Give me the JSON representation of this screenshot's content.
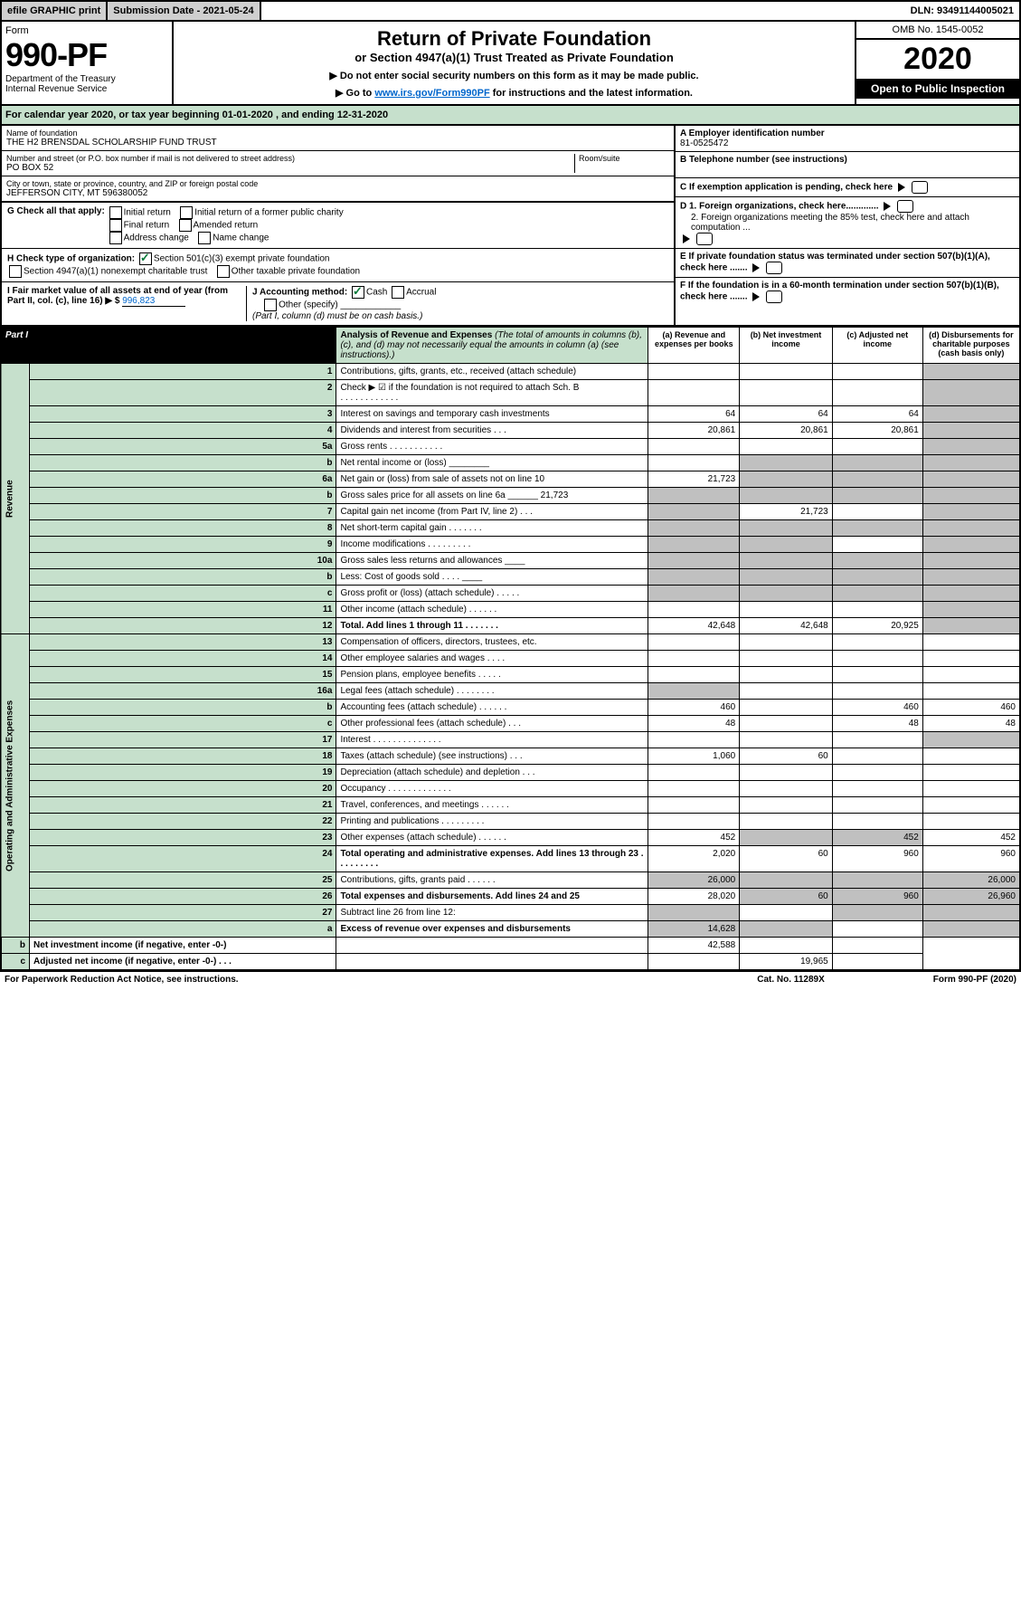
{
  "topbar": {
    "efile": "efile GRAPHIC print",
    "subdate_lbl": "Submission Date - 2021-05-24",
    "dln": "DLN: 93491144005021"
  },
  "header": {
    "form_lbl": "Form",
    "form_no": "990-PF",
    "dept": "Department of the Treasury\nInternal Revenue Service",
    "title": "Return of Private Foundation",
    "subtitle": "or Section 4947(a)(1) Trust Treated as Private Foundation",
    "note1": "▶ Do not enter social security numbers on this form as it may be made public.",
    "note2_pre": "▶ Go to ",
    "note2_link": "www.irs.gov/Form990PF",
    "note2_post": " for instructions and the latest information.",
    "omb": "OMB No. 1545-0052",
    "year": "2020",
    "inspection": "Open to Public Inspection"
  },
  "cal": "For calendar year 2020, or tax year beginning 01-01-2020            , and ending 12-31-2020",
  "info": {
    "name_lbl": "Name of foundation",
    "name": "THE H2 BRENSDAL SCHOLARSHIP FUND TRUST",
    "addr_lbl": "Number and street (or P.O. box number if mail is not delivered to street address)",
    "addr": "PO BOX 52",
    "room_lbl": "Room/suite",
    "city_lbl": "City or town, state or province, country, and ZIP or foreign postal code",
    "city": "JEFFERSON CITY, MT  596380052",
    "ein_lbl": "A Employer identification number",
    "ein": "81-0525472",
    "tel_lbl": "B Telephone number (see instructions)",
    "c": "C  If exemption application is pending, check here",
    "d1": "D 1. Foreign organizations, check here.............",
    "d2": "2. Foreign organizations meeting the 85% test, check here and attach computation ...",
    "e": "E  If private foundation status was terminated under section 507(b)(1)(A), check here .......",
    "f": "F  If the foundation is in a 60-month termination under section 507(b)(1)(B), check here .......",
    "g_lbl": "G Check all that apply:",
    "g": [
      "Initial return",
      "Final return",
      "Address change",
      "Initial return of a former public charity",
      "Amended return",
      "Name change"
    ],
    "h_lbl": "H Check type of organization:",
    "h": [
      "Section 501(c)(3) exempt private foundation",
      "Section 4947(a)(1) nonexempt charitable trust",
      "Other taxable private foundation"
    ],
    "i_lbl": "I Fair market value of all assets at end of year (from Part II, col. (c), line 16) ▶ $",
    "i_val": "996,823",
    "j_lbl": "J Accounting method:",
    "j": [
      "Cash",
      "Accrual",
      "Other (specify)"
    ],
    "j_note": "(Part I, column (d) must be on cash basis.)"
  },
  "part1": {
    "tab": "Part I",
    "title": "Analysis of Revenue and Expenses",
    "note": "(The total of amounts in columns (b), (c), and (d) may not necessarily equal the amounts in column (a) (see instructions).)",
    "cols": {
      "a": "(a)   Revenue and expenses per books",
      "b": "(b)  Net investment income",
      "c": "(c)  Adjusted net income",
      "d": "(d)  Disbursements for charitable purposes (cash basis only)"
    }
  },
  "sides": {
    "rev": "Revenue",
    "exp": "Operating and Administrative Expenses"
  },
  "rows": [
    {
      "n": "1",
      "d": "Contributions, gifts, grants, etc., received (attach schedule)"
    },
    {
      "n": "2",
      "d": "Check ▶ ☑ if the foundation is not required to attach Sch. B",
      "d2": ".   .   .   .   .   .   .   .   .   .   .   ."
    },
    {
      "n": "3",
      "d": "Interest on savings and temporary cash investments",
      "a": "64",
      "b": "64",
      "c": "64"
    },
    {
      "n": "4",
      "d": "Dividends and interest from securities    .   .   .",
      "a": "20,861",
      "b": "20,861",
      "c": "20,861"
    },
    {
      "n": "5a",
      "d": "Gross rents     .   .   .   .   .   .   .   .   .   .   ."
    },
    {
      "n": "b",
      "d": "Net rental income or (loss) ________"
    },
    {
      "n": "6a",
      "d": "Net gain or (loss) from sale of assets not on line 10",
      "a": "21,723"
    },
    {
      "n": "b",
      "d": "Gross sales price for all assets on line 6a ______ 21,723"
    },
    {
      "n": "7",
      "d": "Capital gain net income (from Part IV, line 2)   .   .   .",
      "b": "21,723"
    },
    {
      "n": "8",
      "d": "Net short-term capital gain   .   .   .   .   .   .   ."
    },
    {
      "n": "9",
      "d": "Income modifications  .   .   .   .   .   .   .   .   ."
    },
    {
      "n": "10a",
      "d": "Gross sales less returns and allowances ____"
    },
    {
      "n": "b",
      "d": "Less: Cost of goods sold      .   .   .   .   ____"
    },
    {
      "n": "c",
      "d": "Gross profit or (loss) (attach schedule)   .   .   .   .   ."
    },
    {
      "n": "11",
      "d": "Other income (attach schedule)    .   .   .   .   .   ."
    },
    {
      "n": "12",
      "d": "Total. Add lines 1 through 11   .   .   .   .   .   .   .",
      "a": "42,648",
      "b": "42,648",
      "c": "20,925",
      "bold": true
    },
    {
      "n": "13",
      "d": "Compensation of officers, directors, trustees, etc."
    },
    {
      "n": "14",
      "d": "Other employee salaries and wages   .   .   .   ."
    },
    {
      "n": "15",
      "d": "Pension plans, employee benefits   .   .   .   .   ."
    },
    {
      "n": "16a",
      "d": "Legal fees (attach schedule)  .   .   .   .   .   .   .   ."
    },
    {
      "n": "b",
      "d": "Accounting fees (attach schedule)  .   .   .   .   .   .",
      "a": "460",
      "c": "460",
      "dd": "460"
    },
    {
      "n": "c",
      "d": "Other professional fees (attach schedule)   .   .   .",
      "a": "48",
      "c": "48",
      "dd": "48"
    },
    {
      "n": "17",
      "d": "Interest  .   .   .   .   .   .   .   .   .   .   .   .   .   ."
    },
    {
      "n": "18",
      "d": "Taxes (attach schedule) (see instructions)   .   .   . ",
      "a": "1,060",
      "b": "60"
    },
    {
      "n": "19",
      "d": "Depreciation (attach schedule) and depletion   .   .   ."
    },
    {
      "n": "20",
      "d": "Occupancy  .   .   .   .   .   .   .   .   .   .   .   .   ."
    },
    {
      "n": "21",
      "d": "Travel, conferences, and meetings  .   .   .   .   .   ."
    },
    {
      "n": "22",
      "d": "Printing and publications  .   .   .   .   .   .   .   .   ."
    },
    {
      "n": "23",
      "d": "Other expenses (attach schedule)   .   .   .   .   .   .",
      "a": "452",
      "c": "452",
      "dd": "452"
    },
    {
      "n": "24",
      "d": "Total operating and administrative expenses. Add lines 13 through 23   .   .   .   .   .   .   .   .   .",
      "a": "2,020",
      "b": "60",
      "c": "960",
      "dd": "960",
      "bold": true
    },
    {
      "n": "25",
      "d": "Contributions, gifts, grants paid   .   .   .   .   .   .",
      "a": "26,000",
      "dd": "26,000"
    },
    {
      "n": "26",
      "d": "Total expenses and disbursements. Add lines 24 and 25",
      "a": "28,020",
      "b": "60",
      "c": "960",
      "dd": "26,960",
      "bold": true
    },
    {
      "n": "27",
      "d": "Subtract line 26 from line 12:"
    },
    {
      "n": "a",
      "d": "Excess of revenue over expenses and disbursements",
      "a": "14,628",
      "bold": true
    },
    {
      "n": "b",
      "d": "Net investment income (if negative, enter -0-)",
      "b": "42,588",
      "bold": true
    },
    {
      "n": "c",
      "d": "Adjusted net income (if negative, enter -0-)   .   .   .",
      "c": "19,965",
      "bold": true
    }
  ],
  "shaded": {
    "d_col_rows": [
      "1",
      "2",
      "3",
      "4",
      "5a",
      "b",
      "6a",
      "b2",
      "7",
      "8",
      "9",
      "10a",
      "b3",
      "c",
      "11",
      "12"
    ],
    "bc_8_11": true
  },
  "footer": {
    "l": "For Paperwork Reduction Act Notice, see instructions.",
    "m": "Cat. No. 11289X",
    "r": "Form 990-PF (2020)"
  }
}
